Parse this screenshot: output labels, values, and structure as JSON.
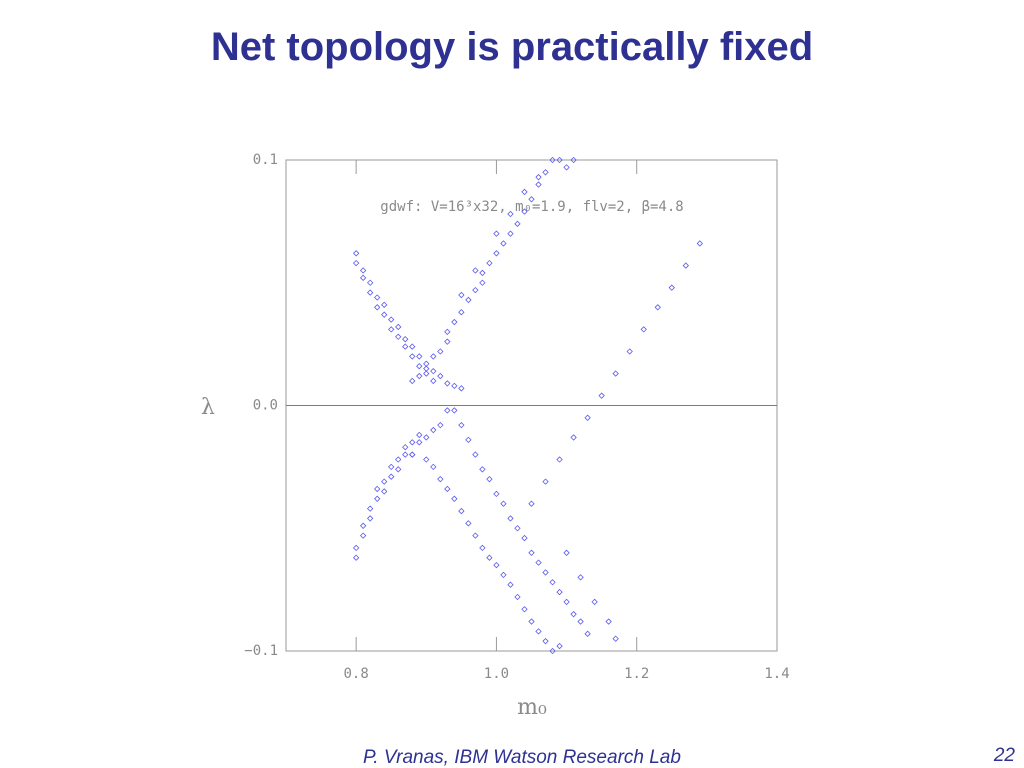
{
  "chart_data": {
    "type": "scatter",
    "title": "Net topology is practically fixed",
    "annotation": "gdwf: V=16³x32, m₀=1.9, flv=2, β=4.8",
    "x_label": "m₀",
    "y_label": "λ",
    "xlim": [
      0.7,
      1.4
    ],
    "ylim": [
      -0.1,
      0.1
    ],
    "xticks": [
      0.8,
      {
        "value": 1.0,
        "label": "1.0"
      },
      1.2,
      1.4
    ],
    "yticks": [
      {
        "value": -0.1,
        "label": "−0.1"
      },
      {
        "value": 0,
        "label": "0.0"
      },
      0.1
    ],
    "grid": false,
    "reference_line": {
      "y": 0,
      "color": "#d9534f"
    },
    "series": [
      {
        "color": "#5a5af0",
        "x": [
          0.8,
          0.8,
          0.81,
          0.81,
          0.82,
          0.82,
          0.83,
          0.83,
          0.84,
          0.84,
          0.85,
          0.85,
          0.86,
          0.86,
          0.87,
          0.87,
          0.88,
          0.88,
          0.89,
          0.89,
          0.9,
          0.9,
          0.91,
          0.91,
          0.92,
          0.93,
          0.94,
          0.95,
          0.88,
          0.89,
          0.9,
          0.91,
          0.92,
          0.93,
          0.93,
          0.94,
          0.95,
          0.96,
          0.97,
          0.98,
          0.98,
          0.99,
          1.0,
          1.01,
          1.02,
          1.03,
          1.04,
          1.05,
          1.06,
          1.07,
          1.08,
          1.09,
          1.1,
          1.11,
          1.0,
          1.02,
          1.04,
          1.06,
          0.97,
          0.95,
          1.29,
          1.27,
          1.25,
          1.23,
          1.21,
          1.19,
          1.17,
          1.15,
          1.13,
          1.11,
          1.09,
          1.07,
          1.05,
          0.8,
          0.8,
          0.81,
          0.81,
          0.82,
          0.82,
          0.83,
          0.83,
          0.84,
          0.84,
          0.85,
          0.85,
          0.86,
          0.86,
          0.87,
          0.87,
          0.88,
          0.88,
          0.89,
          0.89,
          0.9,
          0.91,
          0.92,
          0.93,
          0.88,
          0.9,
          0.91,
          0.92,
          0.93,
          0.94,
          0.95,
          0.96,
          0.97,
          0.98,
          0.99,
          1.0,
          1.01,
          1.02,
          1.03,
          1.04,
          1.05,
          1.06,
          1.07,
          1.08,
          1.09,
          0.94,
          0.95,
          0.96,
          0.97,
          0.98,
          0.99,
          1.0,
          1.01,
          1.02,
          1.03,
          1.04,
          1.05,
          1.06,
          1.07,
          1.08,
          1.09,
          1.1,
          1.11,
          1.12,
          1.13,
          1.16,
          1.17,
          1.14,
          1.12,
          1.1
        ],
        "values": [
          0.062,
          0.058,
          0.055,
          0.052,
          0.05,
          0.046,
          0.044,
          0.04,
          0.041,
          0.037,
          0.035,
          0.031,
          0.032,
          0.028,
          0.027,
          0.024,
          0.024,
          0.02,
          0.02,
          0.016,
          0.017,
          0.013,
          0.014,
          0.01,
          0.012,
          0.009,
          0.008,
          0.007,
          0.01,
          0.012,
          0.015,
          0.02,
          0.022,
          0.026,
          0.03,
          0.034,
          0.038,
          0.043,
          0.047,
          0.05,
          0.054,
          0.058,
          0.062,
          0.066,
          0.07,
          0.074,
          0.079,
          0.084,
          0.09,
          0.095,
          0.1,
          0.1,
          0.097,
          0.1,
          0.07,
          0.078,
          0.087,
          0.093,
          0.055,
          0.045,
          0.066,
          0.057,
          0.048,
          0.04,
          0.031,
          0.022,
          0.013,
          0.004,
          -0.005,
          -0.013,
          -0.022,
          -0.031,
          -0.04,
          -0.062,
          -0.058,
          -0.053,
          -0.049,
          -0.046,
          -0.042,
          -0.038,
          -0.034,
          -0.035,
          -0.031,
          -0.029,
          -0.025,
          -0.026,
          -0.022,
          -0.02,
          -0.017,
          -0.02,
          -0.015,
          -0.015,
          -0.012,
          -0.013,
          -0.01,
          -0.008,
          -0.002,
          -0.02,
          -0.022,
          -0.025,
          -0.03,
          -0.034,
          -0.038,
          -0.043,
          -0.048,
          -0.053,
          -0.058,
          -0.062,
          -0.065,
          -0.069,
          -0.073,
          -0.078,
          -0.083,
          -0.088,
          -0.092,
          -0.096,
          -0.1,
          -0.098,
          -0.002,
          -0.008,
          -0.014,
          -0.02,
          -0.026,
          -0.03,
          -0.036,
          -0.04,
          -0.046,
          -0.05,
          -0.054,
          -0.06,
          -0.064,
          -0.068,
          -0.072,
          -0.076,
          -0.08,
          -0.085,
          -0.088,
          -0.093,
          -0.088,
          -0.095,
          -0.08,
          -0.07,
          -0.06
        ]
      }
    ]
  },
  "footer": {
    "author": "P. Vranas, IBM Watson Research Lab",
    "page": "22"
  }
}
